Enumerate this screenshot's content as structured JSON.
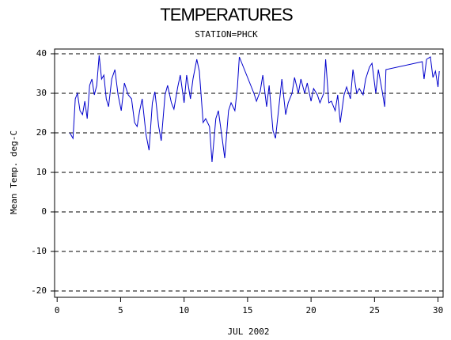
{
  "chart_data": {
    "type": "line",
    "title": "TEMPERATURES",
    "subtitle": "STATION=PHCK",
    "x_label": "JUL 2002",
    "y_label": "Mean Temp. deg-C",
    "xlim": [
      -0.2,
      30.4
    ],
    "xticks": [
      0,
      5,
      10,
      15,
      20,
      25,
      30
    ],
    "ylim": [
      -21.6,
      41.2
    ],
    "yticks": [
      -20,
      -10,
      0,
      10,
      20,
      30,
      40
    ],
    "grid": true,
    "x": [
      1.0,
      1.25,
      1.43,
      1.6,
      1.8,
      2.0,
      2.18,
      2.37,
      2.56,
      2.74,
      2.93,
      3.12,
      3.31,
      3.5,
      3.68,
      3.87,
      4.05,
      4.3,
      4.55,
      4.8,
      5.05,
      5.3,
      5.6,
      5.86,
      6.1,
      6.3,
      6.5,
      6.7,
      7.0,
      7.24,
      7.5,
      7.7,
      8.0,
      8.2,
      8.5,
      8.7,
      9.0,
      9.2,
      9.5,
      9.7,
      10.0,
      10.2,
      10.5,
      10.7,
      11.0,
      11.2,
      11.5,
      11.7,
      12.0,
      12.2,
      12.5,
      12.7,
      13.0,
      13.2,
      13.5,
      13.7,
      14.0,
      14.2,
      14.35,
      15.5,
      15.7,
      16.0,
      16.2,
      16.5,
      16.7,
      17.0,
      17.2,
      17.5,
      17.7,
      18.0,
      18.2,
      18.5,
      18.7,
      19.0,
      19.2,
      19.5,
      19.7,
      20.0,
      20.2,
      20.5,
      20.7,
      21.0,
      21.15,
      21.4,
      21.6,
      21.9,
      22.1,
      22.3,
      22.6,
      22.8,
      23.1,
      23.3,
      23.6,
      23.8,
      24.1,
      24.3,
      24.6,
      24.8,
      25.1,
      25.3,
      25.6,
      25.8,
      25.9,
      28.76,
      28.9,
      29.1,
      29.4,
      29.6,
      29.8,
      30.0,
      30.1
    ],
    "series": [
      {
        "name": "Mean Temp",
        "color": "#0000cc",
        "values": [
          20,
          18.6,
          28.6,
          30,
          25.6,
          24.6,
          28,
          23.6,
          32,
          33.6,
          29.6,
          32,
          39.6,
          33.6,
          34.6,
          28.6,
          26.6,
          33.6,
          36,
          29.6,
          25.6,
          32.6,
          29.6,
          28.6,
          22.6,
          21.6,
          25.6,
          28.6,
          19.6,
          15.6,
          27.6,
          30.4,
          21.6,
          18,
          29.6,
          32,
          27.6,
          26,
          31.6,
          34.6,
          27.6,
          34.6,
          28.6,
          33.6,
          38.6,
          35.6,
          22.6,
          23.6,
          21.6,
          12.6,
          23.6,
          25.6,
          18.6,
          13.6,
          25.6,
          27.6,
          25.6,
          31.6,
          39.2,
          30,
          28,
          30.6,
          34.6,
          26.6,
          32,
          20.6,
          18.6,
          27.6,
          33.6,
          24.6,
          27.6,
          30,
          34,
          30,
          33.6,
          30,
          32.6,
          28,
          31.2,
          29.6,
          27.6,
          30,
          38.6,
          27.6,
          28,
          25.6,
          29.6,
          22.6,
          29.6,
          31.6,
          28.6,
          36,
          30,
          31.2,
          29.6,
          33.6,
          36.6,
          37.6,
          30,
          36,
          30.6,
          26.6,
          36,
          38,
          33.6,
          38.6,
          39.2,
          34,
          35.6,
          31.6,
          35.6
        ]
      }
    ]
  }
}
